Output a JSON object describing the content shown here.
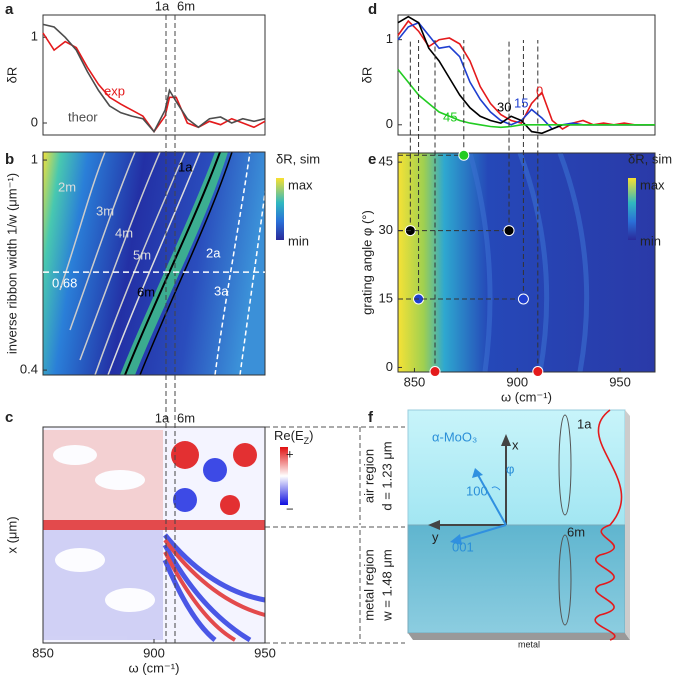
{
  "figure": {
    "panel_labels": [
      "a",
      "b",
      "c",
      "d",
      "e",
      "f"
    ]
  },
  "chart_data": [
    {
      "type": "line",
      "ylabel": "δR",
      "xlim": [
        850,
        950
      ],
      "ylim": [
        -0.14,
        1.26
      ],
      "yticks": [
        0,
        1
      ],
      "markers": [
        "1a",
        "6m"
      ],
      "x": [
        850,
        855,
        860,
        865,
        870,
        875,
        880,
        885,
        890,
        895,
        900,
        905,
        907,
        910,
        915,
        920,
        925,
        930,
        935,
        940,
        945,
        950
      ],
      "series": [
        {
          "name": "exp",
          "color": "#e41a1c",
          "values": [
            1.05,
            0.85,
            0.95,
            0.88,
            0.65,
            0.45,
            0.3,
            0.22,
            0.15,
            0.08,
            -0.1,
            0.08,
            0.3,
            0.3,
            0.0,
            -0.05,
            0.02,
            -0.02,
            0.05,
            0.0,
            -0.05,
            0.02
          ]
        },
        {
          "name": "theor",
          "color": "#4d4d4d",
          "values": [
            1.15,
            1.12,
            1.0,
            0.85,
            0.6,
            0.38,
            0.2,
            0.12,
            0.08,
            0.05,
            -0.1,
            0.15,
            0.38,
            0.25,
            0.05,
            -0.05,
            0.05,
            0.07,
            0.0,
            0.05,
            0.02,
            0.05
          ]
        }
      ]
    },
    {
      "type": "heatmap",
      "ylabel": "inverse ribbon width 1/w (μm⁻¹)",
      "xlim": [
        850,
        950
      ],
      "ylim": [
        0.386,
        1.023
      ],
      "yticks": [
        0.4,
        1
      ],
      "reference_line": 0.68,
      "mode_labels": [
        "2m",
        "3m",
        "4m",
        "5m",
        "6m",
        "1a",
        "2a",
        "3a"
      ],
      "colorbar": {
        "title": "δR, sim",
        "max": "max",
        "min": "min"
      }
    },
    {
      "type": "heatmap",
      "ylabel": "x (μm)",
      "xlabel": "ω (cm⁻¹)",
      "xlim": [
        850,
        950
      ],
      "xticks": [
        850,
        900,
        950
      ],
      "markers": [
        "1a",
        "6m"
      ],
      "colorbar": {
        "title": [
          "Re(E",
          "Z",
          ")"
        ],
        "max": "+",
        "min": "−"
      }
    },
    {
      "type": "line",
      "ylabel": "δR",
      "xlim": [
        842,
        967
      ],
      "ylim": [
        -0.12,
        1.29
      ],
      "yticks": [
        0,
        1
      ],
      "x": [
        842,
        847,
        852,
        857,
        862,
        867,
        872,
        877,
        882,
        887,
        892,
        897,
        902,
        907,
        912,
        917,
        922,
        927,
        932,
        937,
        942,
        947,
        952,
        957,
        962,
        967
      ],
      "series": [
        {
          "name": "0",
          "color": "#e41a1c",
          "values": [
            1.05,
            1.22,
            1.1,
            0.92,
            1.0,
            1.02,
            0.95,
            0.75,
            0.45,
            0.25,
            0.12,
            0.05,
            0.02,
            0.25,
            0.38,
            0.05,
            -0.05,
            0.02,
            0.05,
            0.0,
            0.02,
            0.0,
            0.02,
            0.0,
            0.0,
            0.0
          ]
        },
        {
          "name": "15",
          "color": "#1f3fd0",
          "values": [
            1.0,
            1.15,
            1.2,
            1.05,
            0.9,
            0.92,
            0.8,
            0.5,
            0.3,
            0.15,
            0.05,
            0.0,
            0.05,
            0.18,
            0.08,
            -0.05,
            0.0,
            0.02,
            0.0,
            0.0,
            0.0,
            0.0,
            0.0,
            0.0,
            0.0,
            0.0
          ]
        },
        {
          "name": "30",
          "color": "#000000",
          "values": [
            1.2,
            1.27,
            1.2,
            0.9,
            0.75,
            0.55,
            0.35,
            0.2,
            0.1,
            0.05,
            0.02,
            0.1,
            0.05,
            -0.08,
            -0.1,
            -0.05,
            0.0,
            0.0,
            0.0,
            0.0,
            0.0,
            0.0,
            0.0,
            0.0,
            0.0,
            0.0
          ]
        },
        {
          "name": "45",
          "color": "#22cc22",
          "values": [
            0.65,
            0.5,
            0.35,
            0.25,
            0.15,
            0.1,
            0.05,
            0.02,
            0.0,
            -0.02,
            -0.03,
            -0.02,
            0.0,
            0.0,
            0.0,
            0.0,
            0.0,
            0.0,
            0.0,
            0.0,
            0.0,
            0.0,
            0.0,
            0.0,
            0.0,
            0.0
          ]
        }
      ]
    },
    {
      "type": "scatter",
      "ylabel": "grating angle φ (°)",
      "xlabel": "ω (cm⁻¹)",
      "xlim": [
        842,
        967
      ],
      "ylim": [
        -1,
        47
      ],
      "xticks": [
        850,
        900,
        950
      ],
      "yticks": [
        0,
        15,
        30,
        45
      ],
      "series": [
        {
          "color": "#000000",
          "x": [
            848,
            896
          ],
          "values": [
            30,
            30
          ]
        },
        {
          "color": "#1f3fd0",
          "x": [
            852,
            903
          ],
          "values": [
            15,
            15
          ]
        },
        {
          "color": "#e41a1c",
          "x": [
            860,
            910
          ],
          "values": [
            -0.9,
            -0.9
          ]
        },
        {
          "color": "#22cc22",
          "x": [
            874
          ],
          "values": [
            46.5
          ]
        }
      ],
      "colorbar": {
        "title": "δR, sim",
        "max": "max",
        "min": "min"
      }
    }
  ],
  "diagram_f": {
    "material": "α-MoO₃",
    "x_axis": "x",
    "y_axis": "y",
    "angle": "φ",
    "dir_100": "100",
    "dir_001": "001",
    "air_region": "air region",
    "air_thickness": "d = 1.23 μm",
    "metal_region": "metal region",
    "metal_width": "w = 1.48 μm",
    "mode_air": "1a",
    "mode_metal": "6m",
    "substrate": "metal"
  }
}
